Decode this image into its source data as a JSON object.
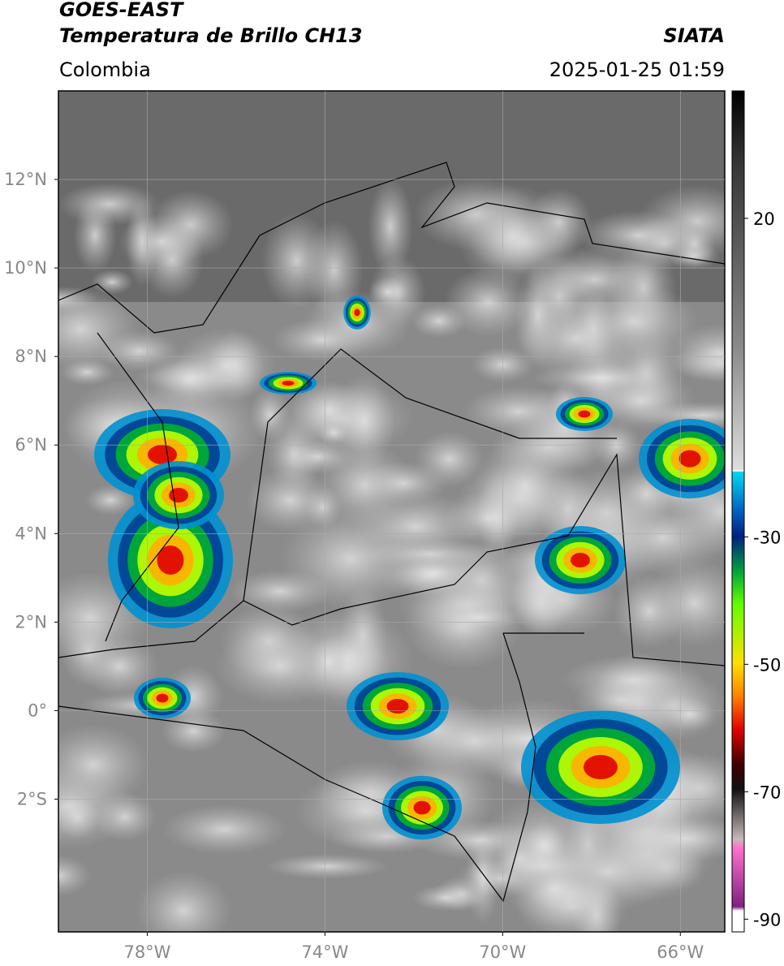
{
  "header": {
    "satellite": "GOES-EAST",
    "product": "Temperatura de Brillo CH13",
    "region": "Colombia",
    "source": "SIATA",
    "datetime": "2025-01-25 01:59"
  },
  "map": {
    "lon_range": [
      -80,
      -65
    ],
    "lat_range": [
      -5,
      14
    ],
    "lat_ticks": [
      {
        "value": 12,
        "label": "12°N"
      },
      {
        "value": 10,
        "label": "10°N"
      },
      {
        "value": 8,
        "label": "8°N"
      },
      {
        "value": 6,
        "label": "6°N"
      },
      {
        "value": 4,
        "label": "4°N"
      },
      {
        "value": 2,
        "label": "2°N"
      },
      {
        "value": 0,
        "label": "0°"
      },
      {
        "value": -2,
        "label": "2°S"
      }
    ],
    "lon_ticks": [
      {
        "value": -78,
        "label": "78°W"
      },
      {
        "value": -74,
        "label": "74°W"
      },
      {
        "value": -70,
        "label": "70°W"
      },
      {
        "value": -66,
        "label": "66°W"
      }
    ]
  },
  "colorbar": {
    "range": [
      -92,
      40
    ],
    "ticks": [
      20,
      -30,
      -50,
      -70,
      -90
    ]
  }
}
